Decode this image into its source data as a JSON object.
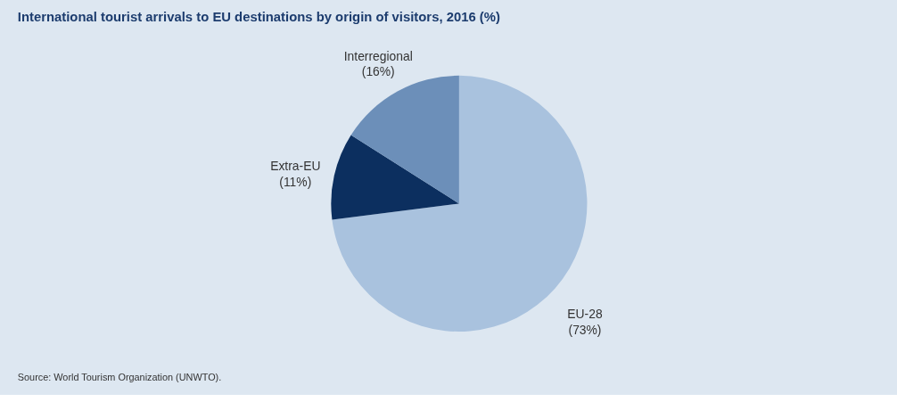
{
  "chart_data": {
    "type": "pie",
    "title": "International tourist arrivals to EU destinations by origin of visitors, 2016 (%)",
    "categories": [
      "EU-28",
      "Extra-EU",
      "Interregional"
    ],
    "values": [
      73,
      11,
      16
    ],
    "value_labels": [
      "(73%)",
      "(11%)",
      "(16%)"
    ],
    "colors": [
      "#a9c2de",
      "#0c2f5f",
      "#6c8fb9"
    ],
    "legend": false,
    "annotations": [
      "Source: World Tourism Organization (UNWTO)."
    ]
  }
}
